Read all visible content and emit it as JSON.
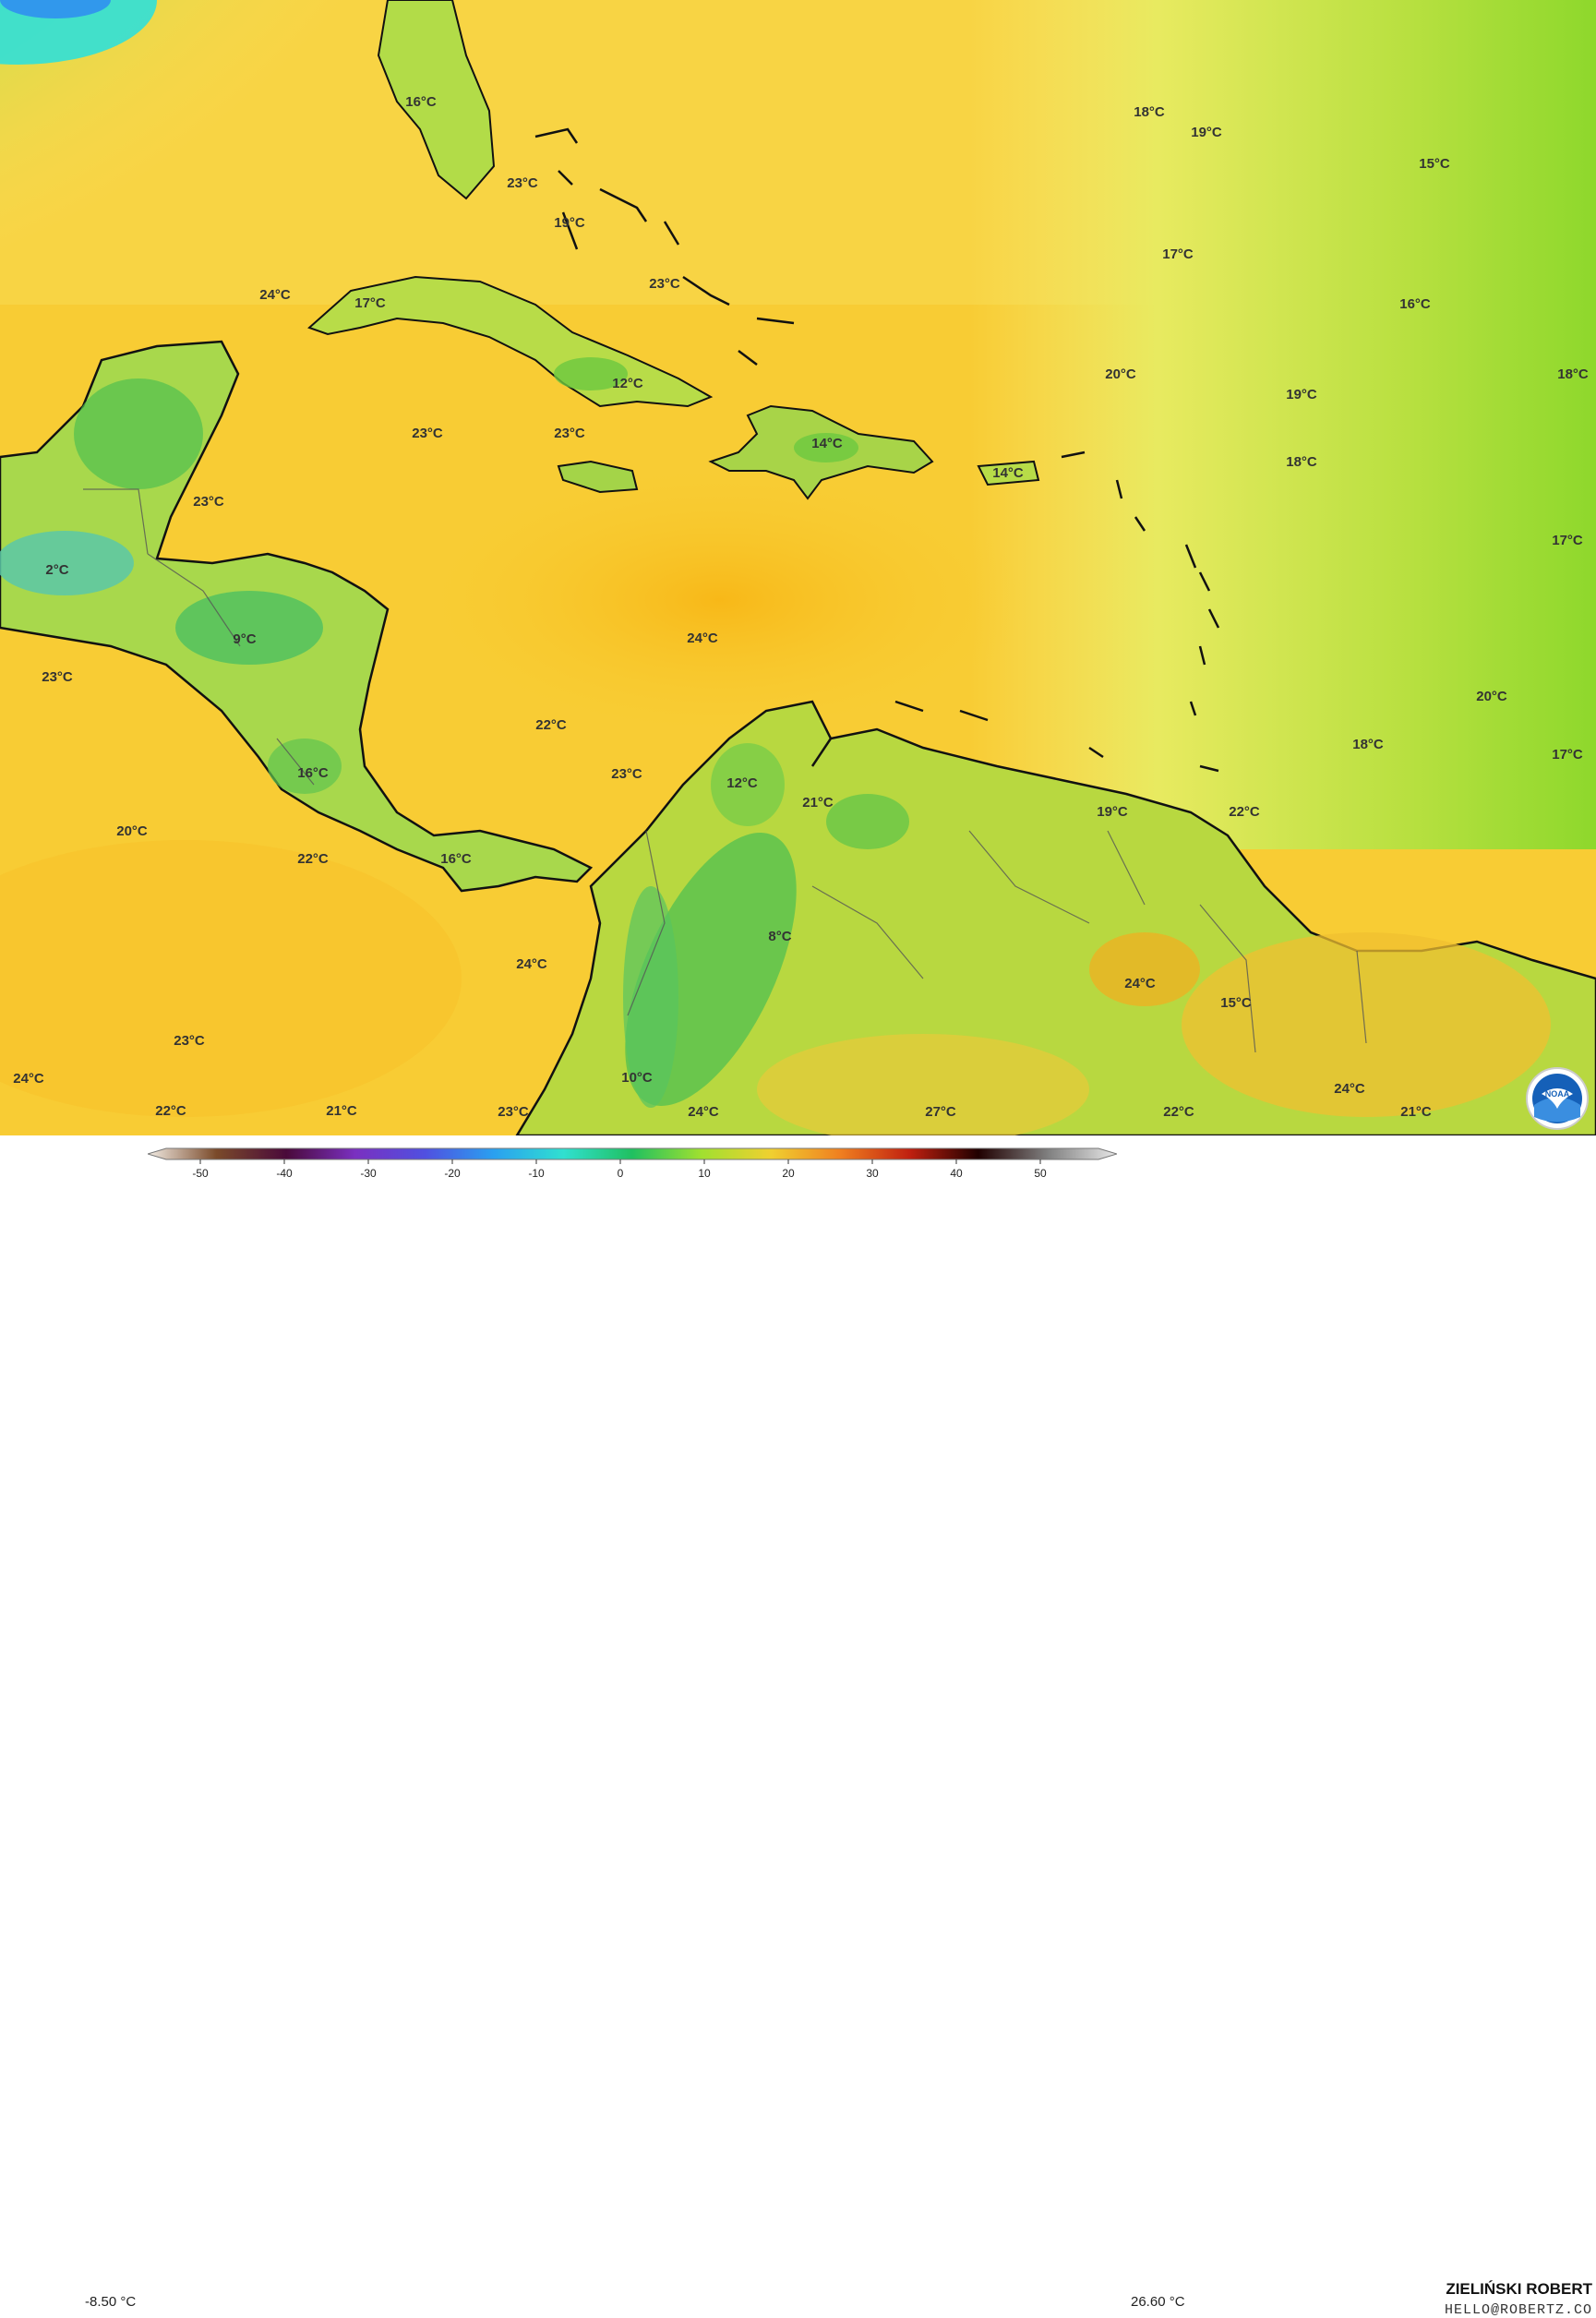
{
  "map": {
    "temperature_labels": [
      "16°C",
      "23°C",
      "19°C",
      "23°C",
      "24°C",
      "17°C",
      "12°C",
      "23°C",
      "23°C",
      "14°C",
      "14°C",
      "23°C",
      "2°C",
      "9°C",
      "23°C",
      "24°C",
      "22°C",
      "23°C",
      "12°C",
      "21°C",
      "19°C",
      "22°C",
      "16°C",
      "20°C",
      "22°C",
      "16°C",
      "24°C",
      "8°C",
      "23°C",
      "24°C",
      "15°C",
      "10°C",
      "22°C",
      "21°C",
      "24°C",
      "23°C",
      "24°C",
      "27°C",
      "22°C",
      "24°C",
      "21°C",
      "18°C",
      "19°C",
      "15°C",
      "17°C",
      "16°C",
      "20°C",
      "19°C",
      "18°C",
      "18°C",
      "17°C",
      "20°C",
      "18°C",
      "17°C"
    ]
  },
  "legend": {
    "min_label": "-8.50 °C",
    "max_label": "26.60 °C",
    "ticks": [
      "-50",
      "-40",
      "-30",
      "-20",
      "-10",
      "0",
      "10",
      "20",
      "30",
      "40",
      "50"
    ],
    "colors": [
      "#f2ece4",
      "#7a4a2a",
      "#4a0a3a",
      "#7a30c0",
      "#5050e0",
      "#2aa0f0",
      "#30e0d0",
      "#20c060",
      "#a0e030",
      "#f0d030",
      "#f08020",
      "#c02010",
      "#200000",
      "#808080",
      "#e8e8e8"
    ]
  },
  "credit": {
    "author": "ZIELIŃSKI ROBERT",
    "email": "HELLO@ROBERTZ.CO"
  },
  "logo": {
    "icon": "noaa-logo",
    "text": "NOAA"
  }
}
